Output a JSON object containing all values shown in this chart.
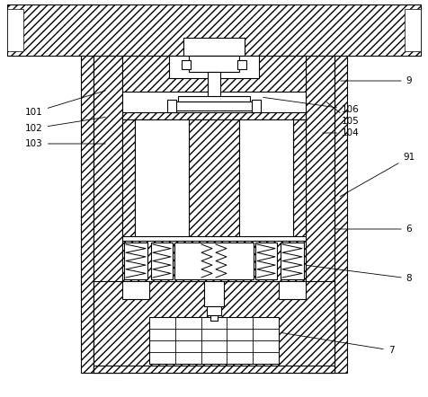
{
  "bg_color": "#ffffff",
  "line_color": "#000000",
  "figsize": [
    4.76,
    4.42
  ],
  "dpi": 100
}
